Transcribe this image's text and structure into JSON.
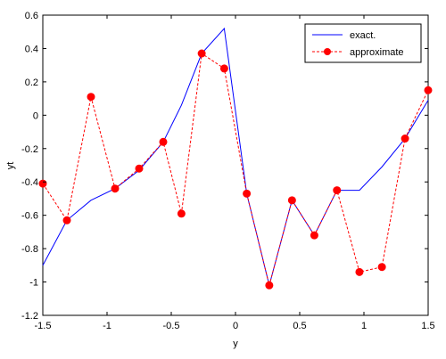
{
  "chart_data": {
    "type": "line",
    "title": "",
    "xlabel": "y",
    "ylabel": "yt",
    "xlim": [
      -1.5,
      1.5
    ],
    "ylim": [
      -1.2,
      0.6
    ],
    "xticks": [
      -1.5,
      -1,
      -0.5,
      0,
      0.5,
      1,
      1.5
    ],
    "xtick_labels": [
      "-1.5",
      "-1",
      "-0.5",
      "0",
      "0.5",
      "1",
      "1.5"
    ],
    "yticks": [
      -1.2,
      -1,
      -0.8,
      -0.6,
      -0.4,
      -0.2,
      0,
      0.2,
      0.4,
      0.6
    ],
    "ytick_labels": [
      "-1.2",
      "-1",
      "-0.8",
      "-0.6",
      "-0.4",
      "-0.2",
      "0",
      "0.2",
      "0.4",
      "0.6"
    ],
    "grid": false,
    "legend_position": "top-right",
    "series": [
      {
        "name": "exact.",
        "color": "#0000ff",
        "style": "solid",
        "marker": "none",
        "x": [
          -1.5,
          -1.3125,
          -1.125,
          -0.9375,
          -0.75,
          -0.5625,
          -0.421,
          -0.263,
          -0.0875,
          0.0875,
          0.263,
          0.44,
          0.614,
          0.79,
          0.965,
          1.14,
          1.32,
          1.5
        ],
        "y": [
          -0.9,
          -0.63,
          -0.51,
          -0.44,
          -0.33,
          -0.16,
          0.06,
          0.37,
          0.52,
          -0.47,
          -1.02,
          -0.51,
          -0.72,
          -0.45,
          -0.45,
          -0.31,
          -0.14,
          0.09
        ]
      },
      {
        "name": "approximate",
        "color": "#ff0000",
        "style": "dashed",
        "marker": "circle",
        "x": [
          -1.5,
          -1.3125,
          -1.125,
          -0.9375,
          -0.75,
          -0.5625,
          -0.421,
          -0.263,
          -0.0875,
          0.0875,
          0.263,
          0.44,
          0.614,
          0.79,
          0.965,
          1.14,
          1.32,
          1.5
        ],
        "y": [
          -0.41,
          -0.63,
          0.11,
          -0.44,
          -0.32,
          -0.16,
          -0.59,
          0.37,
          0.28,
          -0.47,
          -1.02,
          -0.51,
          -0.72,
          -0.45,
          -0.94,
          -0.91,
          -0.14,
          0.15
        ]
      }
    ]
  }
}
